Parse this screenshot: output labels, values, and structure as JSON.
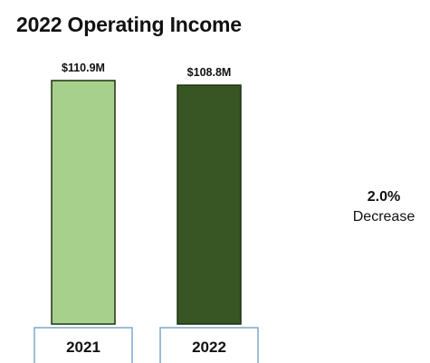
{
  "chart_data": {
    "type": "bar",
    "title": "2022 Operating Income",
    "categories": [
      "2021",
      "2022"
    ],
    "values": [
      110.9,
      108.8
    ],
    "value_labels": [
      "$110.9M",
      "$108.8M"
    ],
    "bar_colors": [
      "#a8d08d",
      "#375623"
    ],
    "bar_border_color": "#1f3112",
    "category_box_border_color": "#7fa7c9",
    "xlabel": "",
    "ylabel": "",
    "ylim": [
      0,
      110.9
    ],
    "grid": false,
    "annotation": {
      "value": "2.0%",
      "text": "Decrease"
    }
  }
}
